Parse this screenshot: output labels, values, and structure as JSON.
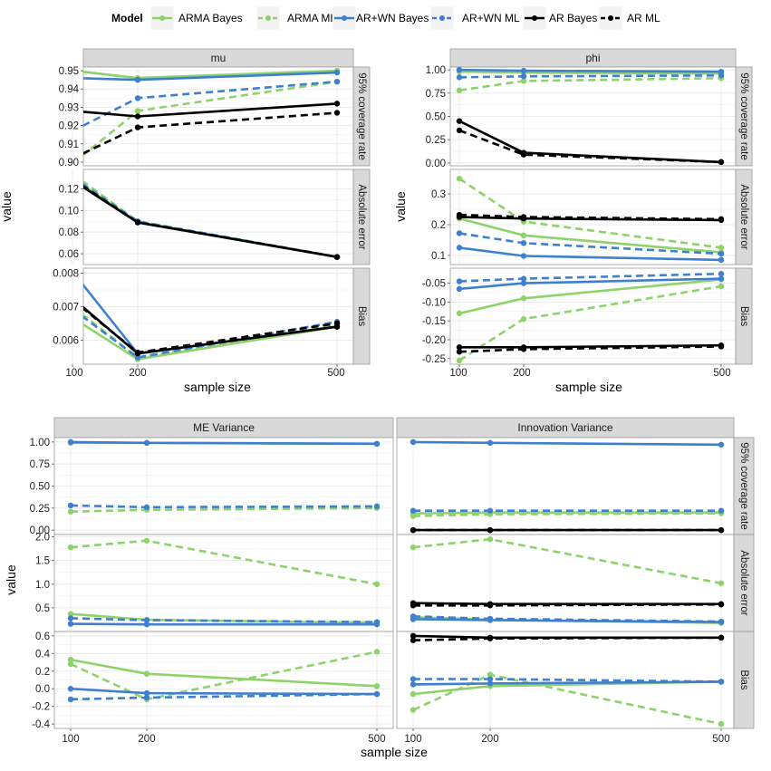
{
  "legend": {
    "title": "Model",
    "entries": [
      {
        "name": "ARMA Bayes",
        "color": "#8ed26a",
        "dash": "solid"
      },
      {
        "name": "ARMA ML",
        "color": "#8ed26a",
        "dash": "dashed"
      },
      {
        "name": "AR+WN Bayes",
        "color": "#3f7fcf",
        "dash": "solid"
      },
      {
        "name": "AR+WN ML",
        "color": "#3f7fcf",
        "dash": "dashed"
      },
      {
        "name": "AR Bayes",
        "color": "#000000",
        "dash": "solid"
      },
      {
        "name": "AR ML",
        "color": "#000000",
        "dash": "dashed"
      }
    ]
  },
  "chart_data": [
    {
      "type": "line",
      "facet": "mu",
      "x": [
        100,
        200,
        500
      ],
      "xlabel": "sample size",
      "ylabel": "value",
      "rows": [
        {
          "label": "95% coverage rate",
          "ylim": [
            0.898,
            0.952
          ],
          "yticks": [
            0.9,
            0.91,
            0.92,
            0.93,
            0.94,
            0.95
          ],
          "yfmt": 2,
          "series": [
            {
              "name": "ARMA Bayes",
              "values": [
                0.95,
                0.946,
                0.95
              ]
            },
            {
              "name": "ARMA ML",
              "values": [
                0.899,
                0.928,
                0.944
              ]
            },
            {
              "name": "AR+WN Bayes",
              "values": [
                0.946,
                0.945,
                0.949
              ]
            },
            {
              "name": "AR+WN ML",
              "values": [
                0.917,
                0.935,
                0.944
              ]
            },
            {
              "name": "AR Bayes",
              "values": [
                0.928,
                0.925,
                0.932
              ]
            },
            {
              "name": "AR ML",
              "values": [
                0.902,
                0.919,
                0.927
              ]
            }
          ]
        },
        {
          "label": "Absolute error",
          "ylim": [
            0.05,
            0.138
          ],
          "yticks": [
            0.06,
            0.08,
            0.1,
            0.12
          ],
          "yfmt": 2,
          "series": [
            {
              "name": "ARMA Bayes",
              "values": [
                0.13,
                0.089,
                0.057
              ]
            },
            {
              "name": "ARMA ML",
              "values": [
                0.134,
                0.09,
                0.057
              ]
            },
            {
              "name": "AR+WN Bayes",
              "values": [
                0.128,
                0.089,
                0.057
              ]
            },
            {
              "name": "AR+WN ML",
              "values": [
                0.131,
                0.09,
                0.057
              ]
            },
            {
              "name": "AR Bayes",
              "values": [
                0.128,
                0.089,
                0.057
              ]
            },
            {
              "name": "AR ML",
              "values": [
                0.129,
                0.089,
                0.057
              ]
            }
          ]
        },
        {
          "label": "Bias",
          "ylim": [
            0.00528,
            0.00815
          ],
          "yticks": [
            0.006,
            0.007,
            0.008
          ],
          "yfmt": 3,
          "series": [
            {
              "name": "ARMA Bayes",
              "values": [
                0.00667,
                0.00543,
                0.0064
              ]
            },
            {
              "name": "ARMA ML",
              "values": [
                0.007,
                0.00548,
                0.00645
              ]
            },
            {
              "name": "AR+WN Bayes",
              "values": [
                0.00805,
                0.0056,
                0.0064
              ]
            },
            {
              "name": "AR+WN ML",
              "values": [
                0.00693,
                0.00548,
                0.00655
              ]
            },
            {
              "name": "AR Bayes",
              "values": [
                0.00725,
                0.0056,
                0.0064
              ]
            },
            {
              "name": "AR ML",
              "values": [
                0.0072,
                0.00563,
                0.0065
              ]
            }
          ]
        }
      ]
    },
    {
      "type": "line",
      "facet": "phi",
      "x": [
        100,
        200,
        500
      ],
      "xlabel": "sample size",
      "ylabel": "value",
      "rows": [
        {
          "label": "95% coverage rate",
          "ylim": [
            -0.03,
            1.03
          ],
          "yticks": [
            0.0,
            0.25,
            0.5,
            0.75,
            1.0
          ],
          "yfmt": 2,
          "series": [
            {
              "name": "ARMA Bayes",
              "values": [
                0.98,
                0.97,
                0.96
              ]
            },
            {
              "name": "ARMA ML",
              "values": [
                0.78,
                0.88,
                0.91
              ]
            },
            {
              "name": "AR+WN Bayes",
              "values": [
                1.0,
                0.99,
                0.98
              ]
            },
            {
              "name": "AR+WN ML",
              "values": [
                0.92,
                0.93,
                0.94
              ]
            },
            {
              "name": "AR Bayes",
              "values": [
                0.45,
                0.11,
                0.01
              ]
            },
            {
              "name": "AR ML",
              "values": [
                0.35,
                0.09,
                0.01
              ]
            }
          ]
        },
        {
          "label": "Absolute error",
          "ylim": [
            0.07,
            0.38
          ],
          "yticks": [
            0.1,
            0.2,
            0.3
          ],
          "yfmt": 1,
          "series": [
            {
              "name": "ARMA Bayes",
              "values": [
                0.22,
                0.165,
                0.11
              ]
            },
            {
              "name": "ARMA ML",
              "values": [
                0.35,
                0.21,
                0.125
              ]
            },
            {
              "name": "AR+WN Bayes",
              "values": [
                0.125,
                0.098,
                0.085
              ]
            },
            {
              "name": "AR+WN ML",
              "values": [
                0.172,
                0.14,
                0.105
              ]
            },
            {
              "name": "AR Bayes",
              "values": [
                0.225,
                0.22,
                0.215
              ]
            },
            {
              "name": "AR ML",
              "values": [
                0.232,
                0.225,
                0.218
              ]
            }
          ]
        },
        {
          "label": "Bias",
          "ylim": [
            -0.265,
            -0.01
          ],
          "yticks": [
            -0.25,
            -0.2,
            -0.15,
            -0.1,
            -0.05
          ],
          "yfmt": 2,
          "series": [
            {
              "name": "ARMA Bayes",
              "values": [
                -0.13,
                -0.09,
                -0.04
              ]
            },
            {
              "name": "ARMA ML",
              "values": [
                -0.255,
                -0.145,
                -0.058
              ]
            },
            {
              "name": "AR+WN Bayes",
              "values": [
                -0.065,
                -0.05,
                -0.038
              ]
            },
            {
              "name": "AR+WN ML",
              "values": [
                -0.045,
                -0.038,
                -0.025
              ]
            },
            {
              "name": "AR Bayes",
              "values": [
                -0.22,
                -0.22,
                -0.215
              ]
            },
            {
              "name": "AR ML",
              "values": [
                -0.232,
                -0.225,
                -0.218
              ]
            }
          ]
        }
      ]
    },
    {
      "type": "line",
      "facet": "ME Variance",
      "x": [
        100,
        200,
        500
      ],
      "xlabel": "sample size",
      "ylabel": "value",
      "rows": [
        {
          "label": "95% coverage rate",
          "ylim": [
            -0.05,
            1.05
          ],
          "yticks": [
            0.0,
            0.25,
            0.5,
            0.75,
            1.0
          ],
          "yfmt": 2,
          "series": [
            {
              "name": "ARMA Bayes",
              "values": [
                0.99,
                0.99,
                0.98
              ]
            },
            {
              "name": "ARMA ML",
              "values": [
                0.21,
                0.23,
                0.25
              ]
            },
            {
              "name": "AR+WN Bayes",
              "values": [
                1.0,
                0.99,
                0.98
              ]
            },
            {
              "name": "AR+WN ML",
              "values": [
                0.28,
                0.26,
                0.27
              ]
            }
          ]
        },
        {
          "label": "Absolute error",
          "ylim": [
            0.0,
            2.05
          ],
          "yticks": [
            0.5,
            1.0,
            1.5,
            2.0
          ],
          "yfmt": 1,
          "series": [
            {
              "name": "ARMA Bayes",
              "values": [
                0.37,
                0.25,
                0.18
              ]
            },
            {
              "name": "ARMA ML",
              "values": [
                1.78,
                1.92,
                1.0
              ]
            },
            {
              "name": "AR+WN Bayes",
              "values": [
                0.16,
                0.15,
                0.15
              ]
            },
            {
              "name": "AR+WN ML",
              "values": [
                0.28,
                0.24,
                0.2
              ]
            }
          ]
        },
        {
          "label": "Bias",
          "ylim": [
            -0.45,
            0.65
          ],
          "yticks": [
            -0.4,
            -0.2,
            0.0,
            0.2,
            0.4,
            0.6
          ],
          "yfmt": 1,
          "series": [
            {
              "name": "ARMA Bayes",
              "values": [
                0.33,
                0.17,
                0.03
              ]
            },
            {
              "name": "ARMA ML",
              "values": [
                0.28,
                -0.12,
                0.42
              ]
            },
            {
              "name": "AR+WN Bayes",
              "values": [
                0.0,
                -0.05,
                -0.06
              ]
            },
            {
              "name": "AR+WN ML",
              "values": [
                -0.12,
                -0.1,
                -0.06
              ]
            }
          ]
        }
      ]
    },
    {
      "type": "line",
      "facet": "Innovation Variance",
      "x": [
        100,
        200,
        500
      ],
      "xlabel": "sample size",
      "ylabel": "value",
      "rows": [
        {
          "label": "95% coverage rate",
          "ylim": [
            -0.05,
            1.05
          ],
          "yticks": [],
          "yfmt": 2,
          "series": [
            {
              "name": "ARMA Bayes",
              "values": [
                0.19,
                0.2,
                0.2
              ]
            },
            {
              "name": "ARMA ML",
              "values": [
                0.16,
                0.18,
                0.19
              ]
            },
            {
              "name": "AR+WN Bayes",
              "values": [
                1.0,
                0.99,
                0.97
              ]
            },
            {
              "name": "AR+WN ML",
              "values": [
                0.22,
                0.22,
                0.22
              ]
            },
            {
              "name": "AR Bayes",
              "values": [
                0.0,
                0.0,
                0.0
              ]
            },
            {
              "name": "AR ML",
              "values": [
                0.0,
                0.0,
                0.0
              ]
            }
          ]
        },
        {
          "label": "Absolute error",
          "ylim": [
            0.0,
            2.05
          ],
          "yticks": [],
          "yfmt": 1,
          "series": [
            {
              "name": "ARMA Bayes",
              "values": [
                0.3,
                0.25,
                0.18
              ]
            },
            {
              "name": "ARMA ML",
              "values": [
                1.78,
                1.95,
                1.02
              ]
            },
            {
              "name": "AR+WN Bayes",
              "values": [
                0.26,
                0.24,
                0.2
              ]
            },
            {
              "name": "AR+WN ML",
              "values": [
                0.32,
                0.27,
                0.21
              ]
            },
            {
              "name": "AR Bayes",
              "values": [
                0.6,
                0.58,
                0.58
              ]
            },
            {
              "name": "AR ML",
              "values": [
                0.55,
                0.55,
                0.57
              ]
            }
          ]
        },
        {
          "label": "Bias",
          "ylim": [
            -0.45,
            0.65
          ],
          "yticks": [],
          "yfmt": 1,
          "series": [
            {
              "name": "ARMA Bayes",
              "values": [
                -0.06,
                0.03,
                0.08
              ]
            },
            {
              "name": "ARMA ML",
              "values": [
                -0.24,
                0.16,
                -0.4
              ]
            },
            {
              "name": "AR+WN Bayes",
              "values": [
                0.05,
                0.06,
                0.08
              ]
            },
            {
              "name": "AR+WN ML",
              "values": [
                0.11,
                0.11,
                0.08
              ]
            },
            {
              "name": "AR Bayes",
              "values": [
                0.6,
                0.58,
                0.58
              ]
            },
            {
              "name": "AR ML",
              "values": [
                0.55,
                0.57,
                0.58
              ]
            }
          ]
        }
      ]
    }
  ]
}
